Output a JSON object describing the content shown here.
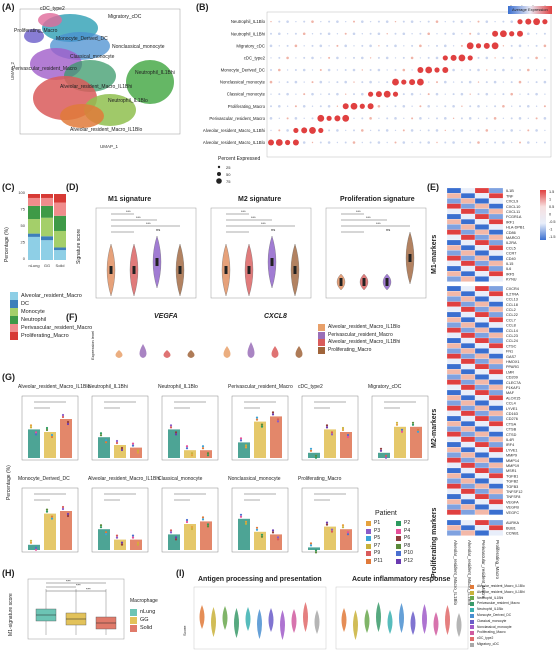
{
  "panels": {
    "a": "(A)",
    "b": "(B)",
    "c": "(C)",
    "d": "(D)",
    "e": "(E)",
    "f": "(F)",
    "g": "(G)",
    "h": "(H)",
    "i": "(I)"
  },
  "umap": {
    "xlabel": "UMAP_1",
    "ylabel": "UMAP_2",
    "xticks": [
      "-10",
      "-5",
      "0",
      "5",
      "10"
    ],
    "yticks": [
      "5",
      "0",
      "-5",
      "-10"
    ],
    "labels": [
      "cDC_type2",
      "Migratory_cDC",
      "Proliferating_Macro",
      "Monocyte_Derived_DC",
      "Nonclassical_monocyte",
      "Classical_monocyte",
      "Perivascular_resident_Macro",
      "Neutrophil_IL1Bhi",
      "Alveolar_resident_Macro_IL1Bhi",
      "Neutrophil_IL1Blo",
      "Alveolar_resident_Macro_IL1Blo"
    ]
  },
  "dotplot": {
    "rows": [
      "Neutrophil_IL1Blo",
      "Neutrophil_IL1Bhi",
      "Migratory_cDC",
      "cDC_type2",
      "Monocyte_Derived_DC",
      "Nonclassical_monocyte",
      "Classical_monocyte",
      "Proliferating_Macro",
      "Perivascular_resident_Macro",
      "Alveolar_resident_Macro_IL1Bhi",
      "Alveolar_resident_Macro_IL1Blo"
    ],
    "legend_title": "Average Expression",
    "legend_ticks": [
      "2",
      "1",
      "0",
      "-1"
    ],
    "size_title": "Percent Expressed",
    "size_values": [
      "25",
      "50",
      "75"
    ]
  },
  "stacked_bar": {
    "ylabel": "Percentage (%)",
    "yticks": [
      "100",
      "75",
      "50",
      "25",
      "0"
    ],
    "categories": [
      "nLung",
      "GG",
      "Solid"
    ],
    "legend": [
      "Alveolar_resident_Macro",
      "DC",
      "Monocyte",
      "Neutrophil",
      "Perivascular_resident_Macro",
      "Proliferating_Macro"
    ],
    "colors": [
      "#8ecfe6",
      "#3d7fba",
      "#a4cf6a",
      "#3e9a47",
      "#f08c8c",
      "#d73a35"
    ]
  },
  "signatures": {
    "ylabel": "Signature score",
    "titles": [
      "M1 signature",
      "M2 signature",
      "Proliferation signature"
    ],
    "sig": [
      "***",
      "***",
      "***",
      "ns"
    ]
  },
  "heatmap_e": {
    "m1_label": "M1-markers",
    "m2_label": "M2-markers",
    "prolif_label": "Proliferating markers",
    "legend_ticks": [
      "1.5",
      "1",
      "0.5",
      "0",
      "-0.5",
      "-1",
      "-1.5"
    ],
    "columns": [
      "Alveolar_resident_Macro_IL1Blo",
      "Alveolar_resident_Macro_IL1Bhi",
      "Perivascular_resident_Macro",
      "Proliferating_Macro"
    ],
    "m1_genes": [
      "IL1B",
      "TNF",
      "CXCL9",
      "CXCL10",
      "CXCL11",
      "FCGR1A",
      "IRF1",
      "HLA-DPB1",
      "CD86",
      "MARCO",
      "IL2RA",
      "CCL5",
      "CCR7",
      "CD40",
      "IL15",
      "IL6",
      "IRF5",
      "KYNU"
    ],
    "m2_genes": [
      "CXCR4",
      "IL27RA",
      "CCL13",
      "CCL18",
      "CCL2",
      "CCL22",
      "CCL7",
      "CCL8",
      "CCL14",
      "CCL23",
      "CCL24",
      "CTSC",
      "FN1",
      "GAS7",
      "HMOX1",
      "PPARG",
      "LMR",
      "CD209",
      "CLEC7A",
      "P1KAF1",
      "MAF",
      "ALOX15",
      "CCL4",
      "LYVE1",
      "CD163",
      "CD276",
      "CTSA",
      "CTSB",
      "CTSD",
      "IL4R",
      "IRF4",
      "LYVE1",
      "MMP9",
      "MMP14",
      "MMP19",
      "MSR1",
      "TGFB1",
      "TGFB2",
      "TGFB3",
      "TNFSF12",
      "TNFSF8",
      "VEGFA",
      "VEGFB",
      "VEGFC"
    ],
    "prolif_genes": [
      "AURKA",
      "BUB1",
      "CCNB1"
    ]
  },
  "violin_f": {
    "ylabel": "Expression level",
    "genes": [
      "VEGFA",
      "CXCL8"
    ],
    "legend": [
      "Alveolar_resident_Macro_IL1Blo",
      "Perivascular_resident_Macro",
      "Alveolar_resident_Macro_IL1Bhi",
      "Proliferating_Macro"
    ],
    "colors": [
      "#e8a06a",
      "#9a6fb8",
      "#d95b5b",
      "#a0643a"
    ]
  },
  "bars_g": {
    "ylabel": "Percentage (%)",
    "titles": [
      "Alveolar_resident_Macro_IL1Blo",
      "Neutrophil_IL1Bhi",
      "Neutrophil_IL1Blo",
      "Perivascular_resident_Macro",
      "cDC_type2",
      "Migratory_cDC",
      "Monocyte_Derived_DC",
      "Alveolar_resident_Macro_IL1Bhi",
      "Classical_monocyte",
      "Nonclassical_monocyte",
      "Proliferating_Macro"
    ],
    "patient_title": "Patient",
    "patients": [
      "P1",
      "P2",
      "P3",
      "P4",
      "P5",
      "P6",
      "P7",
      "P8",
      "P9",
      "P10",
      "P11",
      "P12"
    ],
    "patient_colors": [
      "#e6a23c",
      "#2d9a5f",
      "#8a5cc9",
      "#e64f9a",
      "#3aa4d8",
      "#8f3a3a",
      "#c9b23a",
      "#5a8a3a",
      "#d95b5b",
      "#4a6fd0",
      "#e07a3a",
      "#6a3ab0"
    ]
  },
  "panel_h": {
    "ylabel": "M1-signature score",
    "legend_title": "Macrophage",
    "groups": [
      "nLung",
      "GG",
      "Solid"
    ],
    "colors": [
      "#6cc4b4",
      "#e2c25a",
      "#e07a6a"
    ],
    "sig": [
      "***",
      "***",
      "***"
    ]
  },
  "panel_i": {
    "ylabel": "Score",
    "titles": [
      "Antigen processing and presentation",
      "Acute inflammatory response"
    ],
    "legend": [
      "Alveolar_resident_Macro_IL1Blo",
      "Alveolar_resident_Macro_IL1Bhi",
      "Neutrophil_IL1Bhi",
      "Perivascular_resident_Macro",
      "Neutrophil_IL1Blo",
      "Monocyte_Derived_DC",
      "Classical_monocyte",
      "Nonclassical_monocyte",
      "Proliferating_Macro",
      "cDC_type2",
      "Migratory_cDC"
    ],
    "colors": [
      "#e07a3a",
      "#c9b23a",
      "#6aa84f",
      "#3a9a6a",
      "#3ab0b0",
      "#4a8fd0",
      "#6a5cc9",
      "#a05cc9",
      "#d05ca0",
      "#e06a6a",
      "#a8a8a8"
    ]
  }
}
